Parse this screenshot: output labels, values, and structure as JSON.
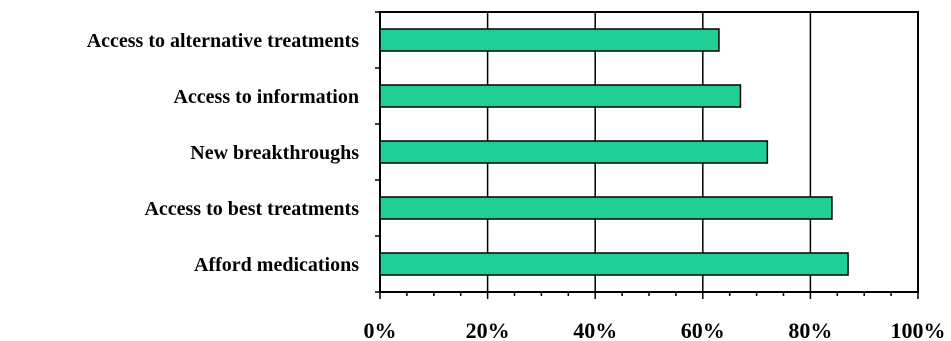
{
  "chart_data": {
    "type": "bar",
    "orientation": "horizontal",
    "title": "",
    "xlabel": "",
    "ylabel": "",
    "categories": [
      "Access to alternative treatments",
      "Access to information",
      "New breakthroughs",
      "Access to best treatments",
      "Afford medications"
    ],
    "values": [
      63,
      67,
      72,
      84,
      87
    ],
    "xlim": [
      0,
      100
    ],
    "x_ticks": [
      "0%",
      "20%",
      "40%",
      "60%",
      "80%",
      "100%"
    ],
    "grid": "vertical",
    "bar_color": "#1FCF96",
    "bar_edge_color": "#000000"
  }
}
